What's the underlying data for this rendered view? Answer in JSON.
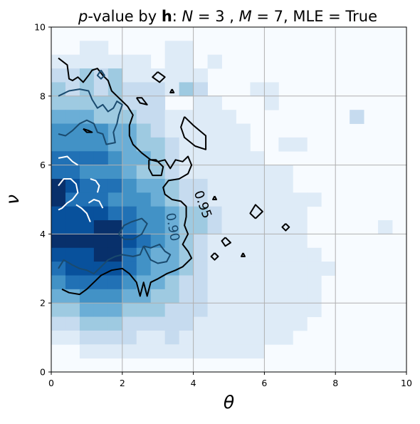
{
  "chart_data": {
    "type": "heatmap",
    "title": {
      "p_symbol": "p",
      "part1": "-value by ",
      "h_symbol": "h",
      "part2": ": ",
      "n_symbol": "N",
      "n_value": " = 3 , ",
      "m_symbol": "M",
      "m_value": " = 7, MLE = True"
    },
    "xlabel": "θ",
    "ylabel": "ν",
    "xlim": [
      0,
      10
    ],
    "ylim": [
      0,
      10
    ],
    "x_ticks": [
      "0",
      "2",
      "4",
      "6",
      "8",
      "10"
    ],
    "y_ticks": [
      "0",
      "2",
      "4",
      "6",
      "8",
      "10"
    ],
    "grid": true,
    "colormap": [
      "#f7fbff",
      "#deebf7",
      "#c6dbef",
      "#9ecae1",
      "#6baed6",
      "#4292c6",
      "#2171b5",
      "#08519c",
      "#08306b"
    ],
    "cell_size": 0.4,
    "grid_origin": [
      0.0,
      0.0
    ],
    "intensity_rows_top_to_bottom": [
      "0000000000000000000000000",
      "0011000011000000000000000",
      "1111111011010000000000000",
      "2232311111100000000000000",
      "3232322213200011000000000",
      "3333322200110001000000000",
      "4443332211111000000002000",
      "5555443211111100000000000",
      "5555443321111100110000000",
      "6666544321111110000000000",
      "6655543321111111100000000",
      "9766654432211111100000000",
      "8666555432211111111000000",
      "7777665543321111110000000",
      "7778865543321111110000010",
      "8889876543211111110000000",
      "7778865443211111111000000",
      "6777765443211111111100000",
      "5666654432211111111000000",
      "4455544332211111111000000",
      "3344433322211111111000000",
      "2233322222111111110000000",
      "1122221121111111100000000",
      "0011111111111110000000000",
      "0000000000000000000000000"
    ],
    "contours": [
      {
        "level": "0.95",
        "color": "#000000",
        "paths": [
          [
            [
              0.2,
              9.1
            ],
            [
              0.45,
              8.9
            ],
            [
              0.5,
              8.5
            ],
            [
              0.6,
              8.45
            ],
            [
              0.75,
              8.55
            ],
            [
              0.9,
              8.4
            ],
            [
              1.05,
              8.6
            ],
            [
              1.15,
              8.75
            ],
            [
              1.3,
              8.8
            ],
            [
              1.45,
              8.6
            ],
            [
              1.6,
              8.45
            ],
            [
              1.7,
              8.15
            ],
            [
              1.85,
              8.0
            ],
            [
              2.0,
              7.85
            ],
            [
              2.15,
              7.7
            ],
            [
              2.3,
              7.45
            ],
            [
              2.2,
              7.15
            ],
            [
              2.2,
              6.85
            ],
            [
              2.3,
              6.6
            ],
            [
              2.55,
              6.35
            ],
            [
              2.8,
              6.15
            ],
            [
              3.0,
              6.1
            ],
            [
              3.2,
              6.15
            ],
            [
              3.35,
              5.9
            ],
            [
              3.5,
              6.15
            ],
            [
              3.7,
              6.1
            ],
            [
              3.85,
              6.25
            ],
            [
              3.95,
              6.0
            ],
            [
              3.85,
              5.75
            ],
            [
              3.6,
              5.6
            ],
            [
              3.3,
              5.55
            ],
            [
              3.15,
              5.35
            ],
            [
              3.2,
              5.15
            ],
            [
              3.4,
              5.0
            ],
            [
              3.65,
              4.95
            ],
            [
              3.8,
              4.8
            ],
            [
              3.8,
              4.5
            ],
            [
              3.75,
              4.25
            ],
            [
              3.85,
              4.0
            ],
            [
              3.7,
              3.7
            ],
            [
              3.85,
              3.5
            ],
            [
              3.95,
              3.3
            ],
            [
              3.7,
              3.05
            ],
            [
              3.5,
              2.95
            ],
            [
              3.25,
              2.85
            ],
            [
              3.0,
              2.7
            ],
            [
              2.8,
              2.6
            ],
            [
              2.7,
              2.2
            ],
            [
              2.6,
              2.6
            ],
            [
              2.5,
              2.2
            ],
            [
              2.4,
              2.6
            ],
            [
              2.2,
              2.85
            ],
            [
              2.0,
              3.0
            ],
            [
              1.7,
              2.95
            ],
            [
              1.4,
              2.8
            ],
            [
              1.2,
              2.6
            ],
            [
              1.0,
              2.4
            ],
            [
              0.8,
              2.25
            ],
            [
              0.5,
              2.3
            ],
            [
              0.3,
              2.4
            ]
          ],
          [
            [
              3.75,
              7.4
            ],
            [
              4.0,
              7.15
            ],
            [
              4.35,
              6.85
            ],
            [
              4.35,
              6.45
            ],
            [
              4.05,
              6.55
            ],
            [
              3.75,
              6.8
            ],
            [
              3.65,
              7.1
            ],
            [
              3.75,
              7.4
            ]
          ],
          [
            [
              2.75,
              6.15
            ],
            [
              2.95,
              6.15
            ],
            [
              3.15,
              5.95
            ],
            [
              3.1,
              5.7
            ],
            [
              2.85,
              5.7
            ],
            [
              2.75,
              5.9
            ],
            [
              2.75,
              6.15
            ]
          ],
          [
            [
              3.0,
              8.7
            ],
            [
              3.2,
              8.55
            ],
            [
              3.05,
              8.4
            ],
            [
              2.85,
              8.55
            ],
            [
              3.0,
              8.7
            ]
          ],
          [
            [
              2.4,
              7.95
            ],
            [
              2.55,
              7.95
            ],
            [
              2.7,
              7.75
            ],
            [
              2.5,
              7.8
            ],
            [
              2.4,
              7.95
            ]
          ],
          [
            [
              0.9,
              7.05
            ],
            [
              1.05,
              7.0
            ],
            [
              1.15,
              6.95
            ],
            [
              1.0,
              6.95
            ],
            [
              0.9,
              7.05
            ]
          ],
          [
            [
              5.75,
              4.45
            ],
            [
              5.95,
              4.65
            ],
            [
              5.75,
              4.85
            ],
            [
              5.6,
              4.6
            ],
            [
              5.75,
              4.45
            ]
          ],
          [
            [
              4.9,
              3.9
            ],
            [
              5.05,
              3.75
            ],
            [
              4.9,
              3.65
            ],
            [
              4.8,
              3.8
            ],
            [
              4.9,
              3.9
            ]
          ],
          [
            [
              4.6,
              3.45
            ],
            [
              4.7,
              3.35
            ],
            [
              4.6,
              3.25
            ],
            [
              4.5,
              3.35
            ],
            [
              4.6,
              3.45
            ]
          ],
          [
            [
              5.4,
              3.45
            ],
            [
              5.45,
              3.35
            ],
            [
              5.35,
              3.35
            ],
            [
              5.4,
              3.45
            ]
          ],
          [
            [
              6.6,
              4.3
            ],
            [
              6.7,
              4.2
            ],
            [
              6.6,
              4.1
            ],
            [
              6.5,
              4.2
            ],
            [
              6.6,
              4.3
            ]
          ],
          [
            [
              3.4,
              8.2
            ],
            [
              3.45,
              8.1
            ],
            [
              3.35,
              8.1
            ],
            [
              3.4,
              8.2
            ]
          ],
          [
            [
              4.6,
              5.1
            ],
            [
              4.65,
              5.0
            ],
            [
              4.55,
              5.0
            ],
            [
              4.6,
              5.1
            ]
          ]
        ]
      },
      {
        "level": "0.90",
        "color": "#1a4a6e",
        "paths": [
          [
            [
              0.2,
              8.0
            ],
            [
              0.5,
              8.15
            ],
            [
              0.8,
              8.2
            ],
            [
              1.05,
              8.15
            ],
            [
              1.15,
              7.9
            ],
            [
              1.3,
              7.65
            ],
            [
              1.45,
              7.75
            ],
            [
              1.6,
              7.55
            ],
            [
              1.75,
              7.65
            ],
            [
              1.85,
              7.85
            ],
            [
              2.0,
              7.75
            ],
            [
              1.9,
              7.45
            ],
            [
              1.85,
              7.2
            ],
            [
              1.75,
              6.95
            ],
            [
              1.8,
              6.65
            ],
            [
              1.55,
              6.6
            ],
            [
              1.45,
              6.9
            ],
            [
              1.3,
              6.95
            ],
            [
              1.2,
              7.2
            ],
            [
              1.0,
              7.3
            ],
            [
              0.8,
              7.2
            ],
            [
              0.6,
              7.0
            ],
            [
              0.4,
              6.85
            ],
            [
              0.2,
              6.9
            ]
          ],
          [
            [
              1.4,
              8.75
            ],
            [
              1.5,
              8.6
            ],
            [
              1.4,
              8.5
            ],
            [
              1.3,
              8.6
            ],
            [
              1.4,
              8.75
            ]
          ],
          [
            [
              2.6,
              3.65
            ],
            [
              2.5,
              3.4
            ],
            [
              2.3,
              3.35
            ],
            [
              2.0,
              3.4
            ],
            [
              1.8,
              3.35
            ],
            [
              1.6,
              3.25
            ],
            [
              1.4,
              3.05
            ],
            [
              1.2,
              2.85
            ],
            [
              1.0,
              2.95
            ],
            [
              0.8,
              3.0
            ],
            [
              0.6,
              3.1
            ],
            [
              0.35,
              3.25
            ],
            [
              0.2,
              3.0
            ]
          ],
          [
            [
              1.9,
              4.0
            ],
            [
              2.05,
              4.25
            ],
            [
              2.25,
              4.35
            ],
            [
              2.55,
              4.45
            ],
            [
              2.7,
              4.3
            ],
            [
              2.55,
              4.0
            ],
            [
              2.3,
              3.85
            ],
            [
              2.05,
              3.85
            ],
            [
              1.9,
              4.0
            ]
          ],
          [
            [
              2.6,
              3.65
            ],
            [
              2.8,
              3.6
            ],
            [
              3.05,
              3.7
            ],
            [
              3.2,
              3.5
            ],
            [
              3.35,
              3.4
            ],
            [
              3.25,
              3.2
            ],
            [
              3.0,
              3.15
            ],
            [
              2.8,
              3.25
            ],
            [
              2.6,
              3.65
            ]
          ]
        ]
      },
      {
        "level": "",
        "color": "#ffffff",
        "paths": [
          [
            [
              0.2,
              5.4
            ],
            [
              0.35,
              5.6
            ],
            [
              0.55,
              5.6
            ],
            [
              0.7,
              5.45
            ],
            [
              0.75,
              5.2
            ],
            [
              0.6,
              5.0
            ],
            [
              0.45,
              4.9
            ],
            [
              0.3,
              4.75
            ],
            [
              0.2,
              4.7
            ]
          ],
          [
            [
              0.2,
              6.2
            ],
            [
              0.45,
              6.25
            ],
            [
              0.6,
              6.1
            ],
            [
              0.75,
              6.0
            ]
          ],
          [
            [
              0.7,
              4.85
            ],
            [
              0.85,
              4.75
            ],
            [
              1.0,
              4.6
            ],
            [
              1.1,
              4.35
            ]
          ],
          [
            [
              1.05,
              4.9
            ],
            [
              1.2,
              5.0
            ],
            [
              1.35,
              4.95
            ],
            [
              1.45,
              4.75
            ]
          ],
          [
            [
              1.1,
              5.6
            ],
            [
              1.25,
              5.55
            ],
            [
              1.35,
              5.4
            ],
            [
              1.3,
              5.2
            ]
          ]
        ]
      }
    ],
    "contour_labels": [
      {
        "text": "0.95",
        "x": 4.25,
        "y": 4.85,
        "angle": 70,
        "color": "#000000"
      },
      {
        "text": "0.90",
        "x": 3.4,
        "y": 4.2,
        "angle": 80,
        "color": "#1a4a6e"
      }
    ]
  }
}
